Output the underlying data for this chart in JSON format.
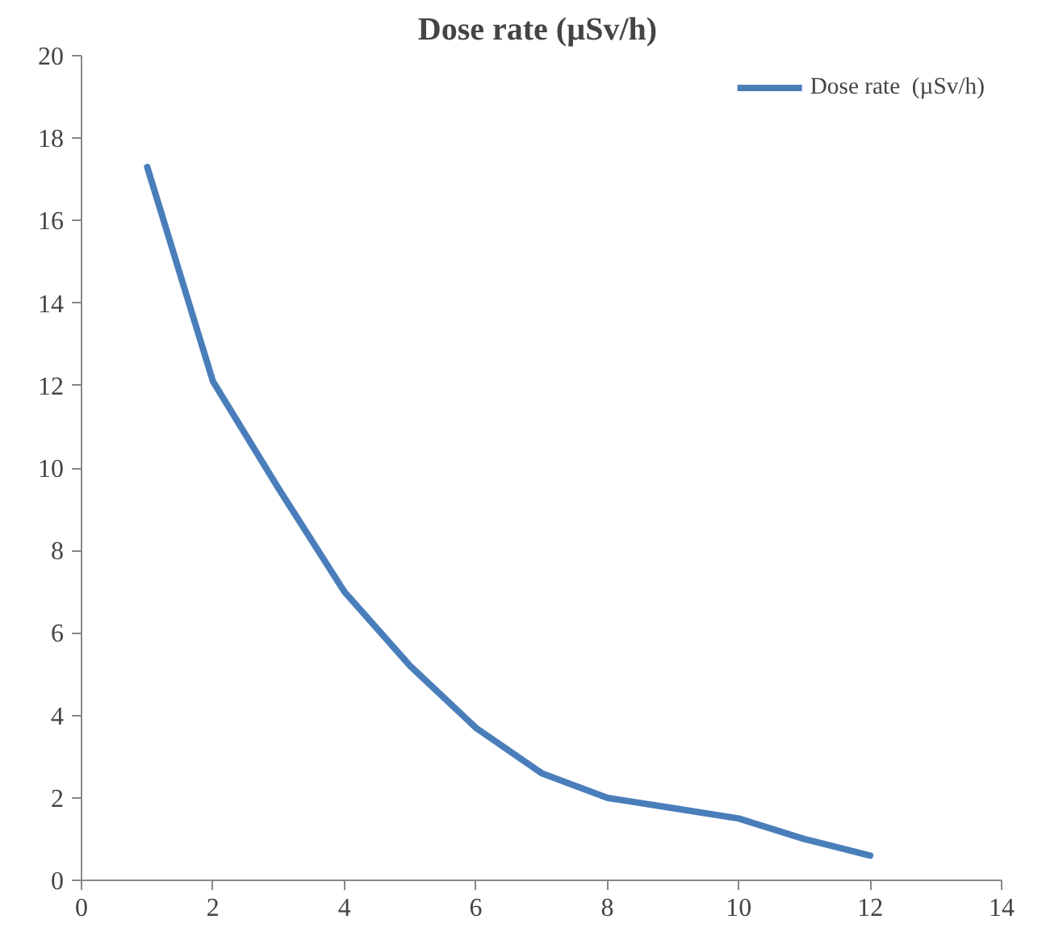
{
  "chart_data": {
    "type": "line",
    "title": "Dose rate  (µSv/h)",
    "x": [
      1,
      2,
      3,
      4,
      5,
      6,
      7,
      8,
      9,
      10,
      11,
      12
    ],
    "series": [
      {
        "name": "Dose rate  (µSv/h)",
        "color": "#4a7ebb",
        "values": [
          17.3,
          12.1,
          9.5,
          7.0,
          5.2,
          3.7,
          2.6,
          2.0,
          1.75,
          1.5,
          1.0,
          0.6
        ]
      }
    ],
    "xlim": [
      0,
      14
    ],
    "xticks": [
      0,
      2,
      4,
      6,
      8,
      10,
      12,
      14
    ],
    "ylim": [
      0,
      20
    ],
    "yticks": [
      0,
      2,
      4,
      6,
      8,
      10,
      12,
      14,
      16,
      18,
      20
    ],
    "grid": false,
    "legend": "top right",
    "marker": "none",
    "line_style": "solid"
  }
}
